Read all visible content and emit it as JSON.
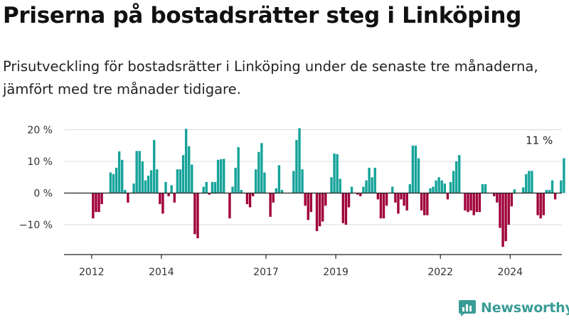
{
  "title": "Priserna på bostadsrätter steg i Linköping",
  "subtitle": "Prisutveckling för bostadsrätter i Linköping under de senaste tre månaderna, jämfört med tre månader tidigare.",
  "brand": {
    "name": "Newsworthy",
    "color": "#3a9c96",
    "icon": "newsworthy-chart-icon"
  },
  "colors": {
    "positive": "#16a39a",
    "negative": "#a0003a"
  },
  "chart_data": {
    "type": "bar",
    "title": "Priserna på bostadsrätter steg i Linköping",
    "subtitle": "Prisutveckling för bostadsrätter i Linköping under de senaste tre månaderna, jämfört med tre månader tidigare.",
    "ylim": [
      -20,
      22
    ],
    "y_ticks": [
      20,
      10,
      0,
      -10
    ],
    "y_tick_labels": [
      "20 %",
      "10 %",
      "0 %",
      "−10 %"
    ],
    "x_ticks": [
      2012,
      2014,
      2017,
      2019,
      2022,
      2024
    ],
    "x_tick_labels": [
      "2012",
      "2014",
      "2017",
      "2019",
      "2022",
      "2024"
    ],
    "x_start": "2012-01",
    "x_frequency": "monthly",
    "annotation": {
      "text": "11 %",
      "x": "2024-11",
      "y": 11
    },
    "values": [
      -8,
      -6,
      -6,
      -3.5,
      0,
      0,
      6.5,
      6,
      8,
      13.2,
      10.5,
      1,
      -3,
      0,
      3,
      13.3,
      13.3,
      10,
      4,
      5.5,
      7.2,
      16.8,
      7.5,
      -3.5,
      -6.5,
      3.5,
      -1,
      2.5,
      -3,
      7.5,
      7.5,
      12,
      20.3,
      14.8,
      9,
      -13,
      -14.3,
      0,
      2,
      3.5,
      -0.5,
      3.5,
      3.5,
      10.5,
      10.7,
      10.8,
      0,
      -8,
      2,
      8,
      14.5,
      1,
      0,
      -3.5,
      -4.5,
      -1,
      7.5,
      13,
      15.8,
      6.5,
      0,
      -7.5,
      -3,
      1.5,
      8.8,
      1,
      0,
      0,
      0,
      7,
      16.8,
      20.5,
      7.5,
      -4,
      -8.5,
      -6,
      0,
      -12,
      -10.5,
      -9,
      -4,
      0,
      5,
      12.5,
      12.3,
      4.5,
      -9.5,
      -10,
      -4.5,
      2,
      0,
      -0.5,
      -1,
      2,
      4,
      8,
      5,
      8,
      -2,
      -8,
      -8,
      -4,
      0,
      2,
      -3,
      -6.5,
      -2,
      -4,
      -5.5,
      2.8,
      15,
      15,
      11,
      -5.5,
      -7,
      -7,
      1.5,
      2,
      4,
      5,
      4,
      3,
      -2,
      3.5,
      7,
      10,
      12,
      0,
      -5.5,
      -6,
      -5.5,
      -7,
      -6,
      -6,
      2.8,
      2.8,
      0,
      0,
      -1,
      -3,
      -11,
      -17,
      -15.2,
      -10,
      -4.2,
      1.2,
      0,
      0,
      1.8,
      6,
      7,
      7,
      0,
      -7,
      -8,
      -7,
      1,
      1,
      4,
      -2,
      0,
      4,
      11
    ]
  }
}
